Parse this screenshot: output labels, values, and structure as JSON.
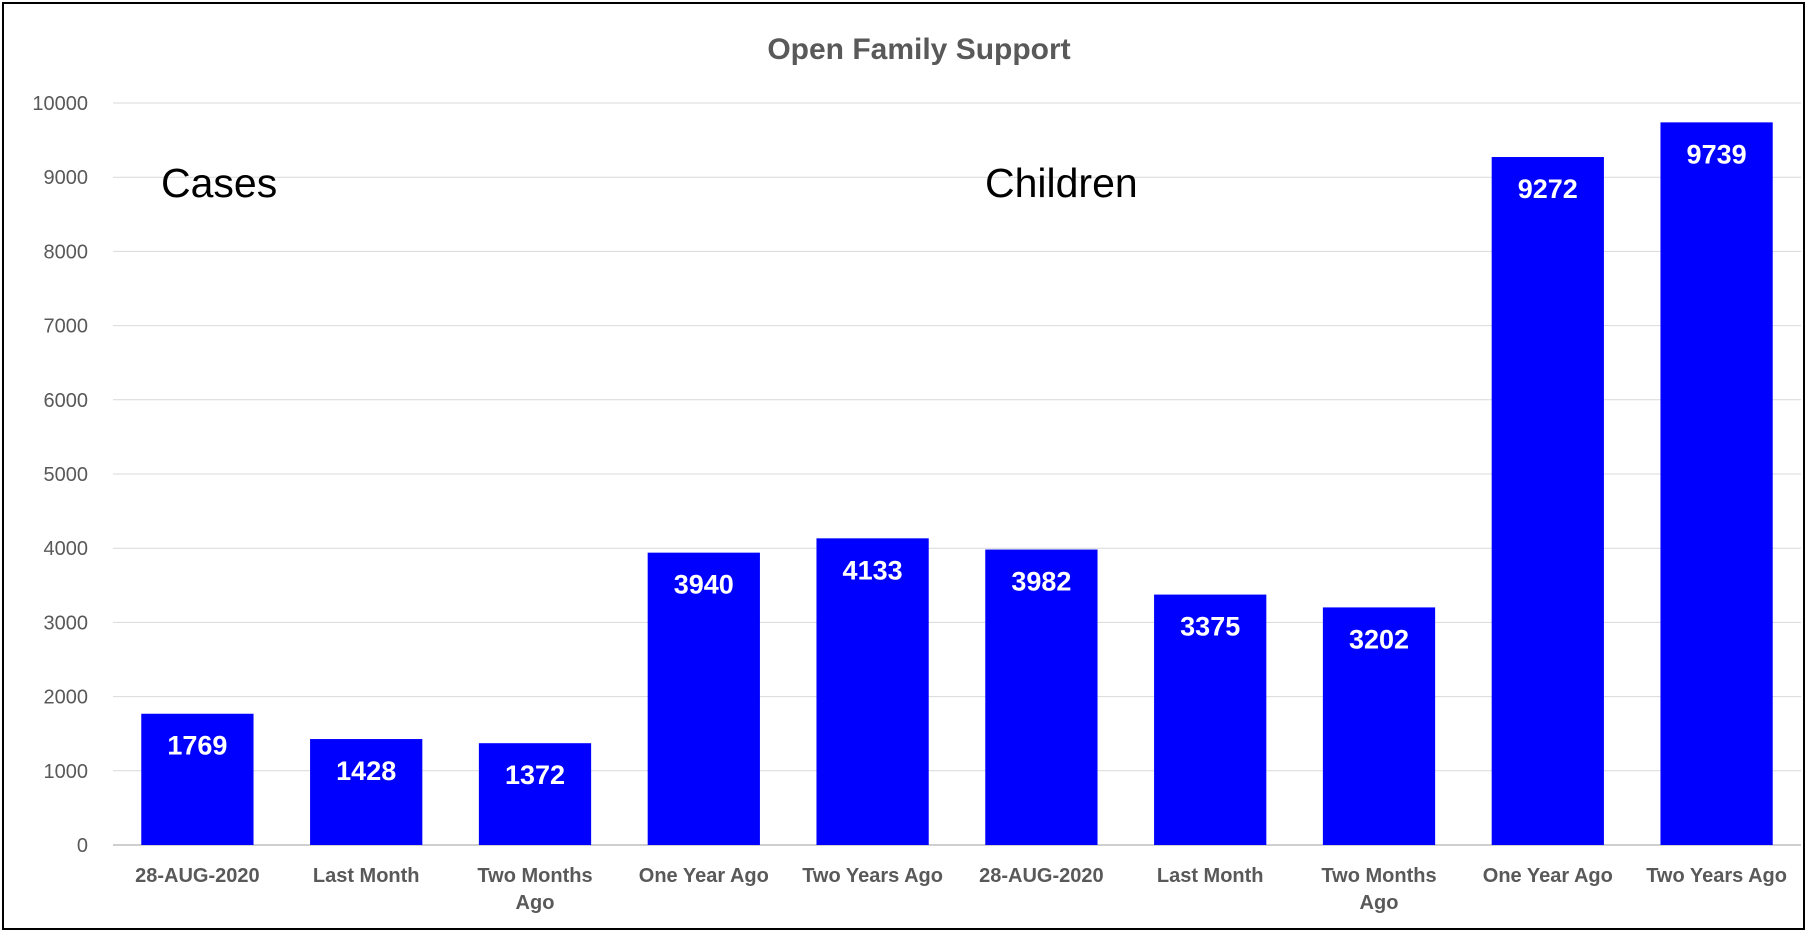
{
  "chart_data": {
    "type": "bar",
    "title": "Open Family Support",
    "xlabel": "",
    "ylabel": "",
    "ylim": [
      0,
      10000
    ],
    "yticks": [
      0,
      1000,
      2000,
      3000,
      4000,
      5000,
      6000,
      7000,
      8000,
      9000,
      10000
    ],
    "grid": true,
    "legend": "none",
    "categories": [
      [
        "28-AUG-2020"
      ],
      [
        "Last Month"
      ],
      [
        "Two Months",
        "Ago"
      ],
      [
        "One Year Ago"
      ],
      [
        "Two Years Ago"
      ],
      [
        "28-AUG-2020"
      ],
      [
        "Last Month"
      ],
      [
        "Two Months",
        "Ago"
      ],
      [
        "One Year Ago"
      ],
      [
        "Two Years Ago"
      ]
    ],
    "values": [
      1769,
      1428,
      1372,
      3940,
      4133,
      3982,
      3375,
      3202,
      9272,
      9739
    ],
    "data_labels": [
      "1769",
      "1428",
      "1372",
      "3940",
      "4133",
      "3982",
      "3375",
      "3202",
      "9272",
      "9739"
    ],
    "annotations": [
      "Cases",
      "Children"
    ],
    "bar_color": "#0000FF",
    "data_label_color": "#FFFFFF"
  }
}
